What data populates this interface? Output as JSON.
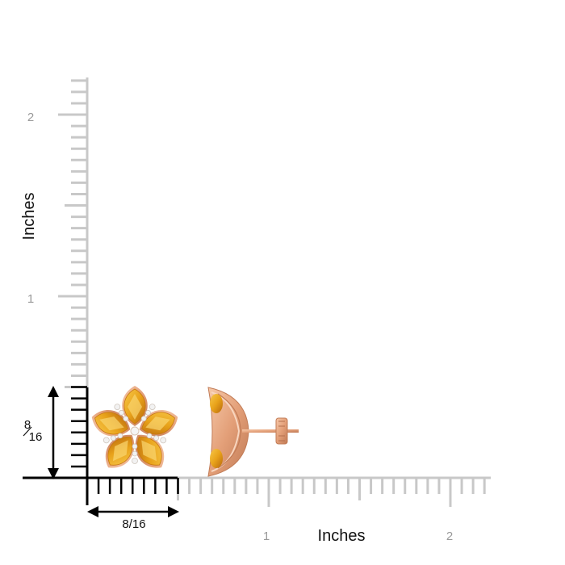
{
  "axis_x": {
    "title": "Inches",
    "ticks": [
      "1",
      "2"
    ]
  },
  "axis_y": {
    "title": "Inches",
    "ticks": [
      "1",
      "2"
    ]
  },
  "dimension_x": {
    "label": "8/16"
  },
  "dimension_y": {
    "numerator": "8",
    "denominator": "16"
  },
  "colors": {
    "ruler_gray": "#c8c8c8",
    "ruler_black": "#000000",
    "tick_text": "#9a9a9a",
    "citrine": "#e8a21a",
    "citrine_dark": "#c9780e",
    "rose_gold": "#e9a982",
    "diamond": "#f2f2f2"
  },
  "product": {
    "front_view": "citrine-flower-stud-earring-front",
    "side_view": "citrine-flower-stud-earring-side"
  }
}
